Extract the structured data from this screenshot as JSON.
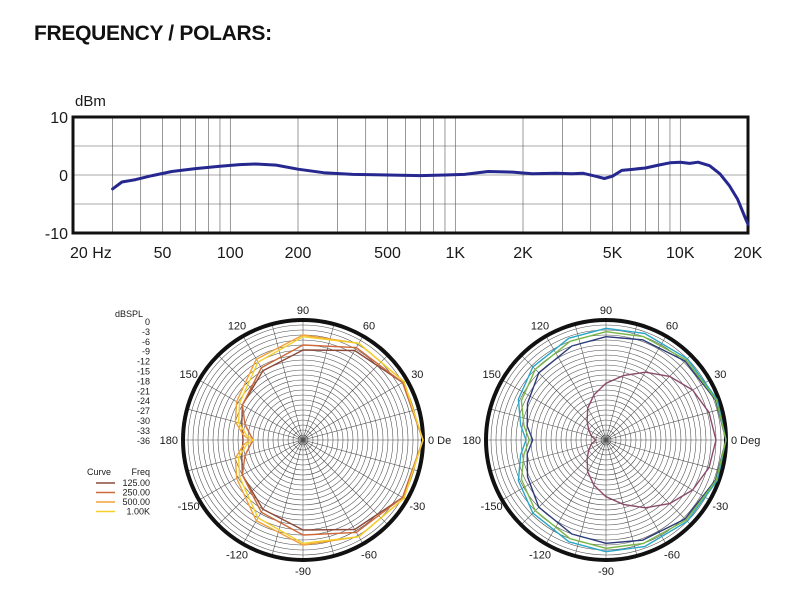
{
  "header": {
    "title": "FREQUENCY / POLARS:"
  },
  "chart_data": [
    {
      "type": "line",
      "title": "",
      "ylabel": "dBm",
      "xscale": "log",
      "xlim": [
        20,
        20000
      ],
      "ylim": [
        -10,
        10
      ],
      "grid": true,
      "x_ticks": [
        {
          "value": 20,
          "label": "20  Hz"
        },
        {
          "value": 50,
          "label": "50"
        },
        {
          "value": 100,
          "label": "100"
        },
        {
          "value": 200,
          "label": "200"
        },
        {
          "value": 500,
          "label": "500"
        },
        {
          "value": 1000,
          "label": "1K"
        },
        {
          "value": 2000,
          "label": "2K"
        },
        {
          "value": 5000,
          "label": "5K"
        },
        {
          "value": 10000,
          "label": "10K"
        },
        {
          "value": 20000,
          "label": "20K"
        }
      ],
      "y_ticks": [
        {
          "value": 10,
          "label": "10"
        },
        {
          "value": 0,
          "label": "0"
        },
        {
          "value": -10,
          "label": "-10"
        }
      ],
      "series": [
        {
          "color": "#26278f",
          "x": [
            30,
            33,
            38,
            45,
            55,
            70,
            90,
            110,
            130,
            160,
            200,
            260,
            350,
            500,
            700,
            900,
            1100,
            1400,
            1800,
            2200,
            2800,
            3300,
            3700,
            4200,
            4600,
            5000,
            5500,
            6200,
            7000,
            8000,
            9000,
            10000,
            11000,
            12000,
            13500,
            15000,
            16500,
            18000,
            19500,
            20000
          ],
          "y": [
            -2.4,
            -1.2,
            -0.8,
            -0.1,
            0.6,
            1.1,
            1.5,
            1.8,
            1.9,
            1.7,
            1.0,
            0.4,
            0.1,
            0.0,
            -0.1,
            0.0,
            0.1,
            0.6,
            0.5,
            0.2,
            0.3,
            0.2,
            0.3,
            -0.2,
            -0.6,
            -0.2,
            0.8,
            1.0,
            1.2,
            1.7,
            2.1,
            2.2,
            2.0,
            2.2,
            1.6,
            0.2,
            -1.8,
            -4.2,
            -7.5,
            -8.5
          ]
        }
      ]
    },
    {
      "type": "polar",
      "title": "",
      "radial_label": "dBSPL",
      "radial_ticks": [
        "0",
        "-3",
        "-6",
        "-9",
        "-12",
        "-15",
        "-18",
        "-21",
        "-24",
        "-27",
        "-30",
        "-33",
        "-36"
      ],
      "rlim": [
        -36,
        0
      ],
      "angle_labels": [
        {
          "angle": 0,
          "label": "0 De"
        },
        {
          "angle": 30,
          "label": "30"
        },
        {
          "angle": 60,
          "label": "60"
        },
        {
          "angle": 90,
          "label": "90"
        },
        {
          "angle": 120,
          "label": "120"
        },
        {
          "angle": 150,
          "label": "150"
        },
        {
          "angle": 180,
          "label": "180"
        },
        {
          "angle": -150,
          "label": "-150"
        },
        {
          "angle": -120,
          "label": "-120"
        },
        {
          "angle": -90,
          "label": "-90"
        },
        {
          "angle": -60,
          "label": "-60"
        },
        {
          "angle": -30,
          "label": "-30"
        }
      ],
      "legend": {
        "position": "left",
        "header_curve": "Curve",
        "header_freq": "Freq",
        "entries": [
          {
            "label": "125.00",
            "color": "#8b4a3c"
          },
          {
            "label": "250.00",
            "color": "#cc6a3a"
          },
          {
            "label": "500.00",
            "color": "#f2a23a"
          },
          {
            "label": "1.00K",
            "color": "#f4d02c"
          }
        ]
      },
      "series": [
        {
          "name": "125.00",
          "color": "#8b4a3c",
          "angles": [
            0,
            30,
            60,
            90,
            120,
            150,
            165,
            180,
            195,
            210,
            240,
            270,
            300,
            330
          ],
          "values": [
            0,
            -1.5,
            -5,
            -9,
            -12,
            -15,
            -17,
            -18,
            -17,
            -15,
            -12,
            -9,
            -5,
            -1.5
          ]
        },
        {
          "name": "250.00",
          "color": "#cc6a3a",
          "angles": [
            0,
            30,
            60,
            90,
            120,
            150,
            165,
            180,
            195,
            210,
            240,
            270,
            300,
            330
          ],
          "values": [
            0,
            -1.5,
            -4,
            -7.5,
            -11,
            -15,
            -18,
            -21,
            -18,
            -15,
            -11,
            -7.5,
            -4,
            -1.5
          ]
        },
        {
          "name": "500.00",
          "color": "#f2a23a",
          "angles": [
            0,
            30,
            60,
            90,
            120,
            150,
            165,
            175,
            180,
            185,
            195,
            210,
            240,
            270,
            300,
            330
          ],
          "values": [
            0,
            -1,
            -2.5,
            -4.5,
            -8,
            -13,
            -15,
            -18,
            -20,
            -18,
            -15,
            -13,
            -8,
            -4.5,
            -2.5,
            -1
          ]
        },
        {
          "name": "1.00K",
          "color": "#f4d02c",
          "angles": [
            0,
            30,
            60,
            90,
            120,
            150,
            165,
            175,
            180,
            185,
            195,
            210,
            240,
            270,
            300,
            330
          ],
          "values": [
            0,
            -1,
            -2.5,
            -5,
            -9,
            -14,
            -16,
            -19,
            -21,
            -19,
            -16,
            -14,
            -9,
            -5,
            -2.5,
            -1
          ]
        }
      ]
    },
    {
      "type": "polar",
      "title": "",
      "rlim": [
        -36,
        0
      ],
      "angle_labels": [
        {
          "angle": 0,
          "label": "0 Deg"
        },
        {
          "angle": 30,
          "label": "30"
        },
        {
          "angle": 60,
          "label": "60"
        },
        {
          "angle": 90,
          "label": "90"
        },
        {
          "angle": 120,
          "label": "120"
        },
        {
          "angle": 150,
          "label": "150"
        },
        {
          "angle": 180,
          "label": "180"
        },
        {
          "angle": -150,
          "label": "-150"
        },
        {
          "angle": -120,
          "label": "-120"
        },
        {
          "angle": -90,
          "label": "-90"
        },
        {
          "angle": -60,
          "label": "-60"
        },
        {
          "angle": -30,
          "label": "-30"
        }
      ],
      "series": [
        {
          "color": "#2b3a78",
          "angles": [
            0,
            20,
            45,
            70,
            90,
            110,
            135,
            155,
            170,
            180,
            190,
            205,
            225,
            250,
            270,
            290,
            315,
            340
          ],
          "values": [
            0,
            -1,
            -2.5,
            -4,
            -5,
            -6,
            -7.5,
            -10,
            -12,
            -14,
            -12,
            -10,
            -7.5,
            -6,
            -5,
            -4,
            -2.5,
            -1
          ]
        },
        {
          "color": "#2aa6c8",
          "angles": [
            0,
            20,
            45,
            70,
            90,
            110,
            135,
            155,
            170,
            180,
            190,
            205,
            225,
            250,
            270,
            290,
            315,
            340
          ],
          "values": [
            0,
            -0.5,
            -1.5,
            -2,
            -2.5,
            -3.5,
            -5,
            -7,
            -10,
            -12,
            -10,
            -7,
            -5,
            -3.5,
            -2.5,
            -2,
            -1.5,
            -0.5
          ]
        },
        {
          "color": "#7ab648",
          "angles": [
            0,
            20,
            45,
            70,
            90,
            110,
            135,
            155,
            170,
            180,
            190,
            205,
            225,
            250,
            270,
            290,
            315,
            340
          ],
          "values": [
            0,
            -0.8,
            -2,
            -3,
            -3.5,
            -4.5,
            -6,
            -8,
            -11,
            -13,
            -11,
            -8,
            -6,
            -4.5,
            -3.5,
            -3,
            -2,
            -0.8
          ]
        },
        {
          "color": "#8a4a6a",
          "angles": [
            0,
            15,
            30,
            45,
            60,
            75,
            90,
            105,
            120,
            135,
            150,
            165,
            180,
            195,
            210,
            225,
            240,
            255,
            270,
            285,
            300,
            315,
            330,
            345
          ],
          "values": [
            -3,
            -4,
            -6,
            -9,
            -12.5,
            -16,
            -19,
            -22,
            -25,
            -28,
            -30,
            -31.5,
            -33,
            -31.5,
            -30,
            -28,
            -25,
            -22,
            -19,
            -16,
            -12.5,
            -9,
            -6,
            -4
          ]
        }
      ]
    }
  ]
}
